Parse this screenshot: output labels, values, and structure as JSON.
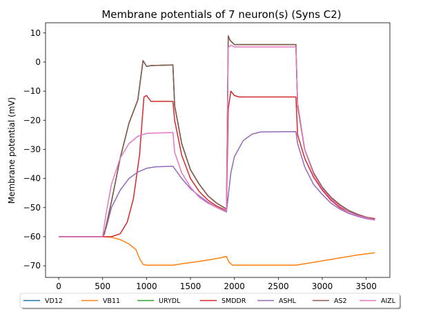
{
  "chart_data": {
    "type": "line",
    "title": "Membrane potentials of 7 neuron(s) (Syns C2)",
    "xlabel": "",
    "ylabel": "Membrane potential (mV)",
    "xlim": [
      -150,
      3770
    ],
    "ylim": [
      -74,
      13.5
    ],
    "xticks": [
      0,
      500,
      1000,
      1500,
      2000,
      2500,
      3000,
      3500
    ],
    "yticks": [
      -70,
      -60,
      -50,
      -40,
      -30,
      -20,
      -10,
      0,
      10
    ],
    "grid": false,
    "legend_position": "bottom-outside",
    "series": [
      {
        "name": "VD12",
        "color": "#1f77b4",
        "points": [
          [
            0,
            -60
          ],
          [
            500,
            -60
          ],
          [
            520,
            -59
          ],
          [
            600,
            -48
          ],
          [
            700,
            -33
          ],
          [
            800,
            -21
          ],
          [
            900,
            -13
          ],
          [
            960,
            0.5
          ],
          [
            1000,
            -1.5
          ],
          [
            1050,
            -1.2
          ],
          [
            1300,
            -1
          ],
          [
            1320,
            -15
          ],
          [
            1400,
            -28
          ],
          [
            1500,
            -37
          ],
          [
            1600,
            -42
          ],
          [
            1700,
            -46
          ],
          [
            1800,
            -48.5
          ],
          [
            1910,
            -50.5
          ],
          [
            1930,
            9
          ],
          [
            1950,
            7.5
          ],
          [
            2000,
            6
          ],
          [
            2700,
            6
          ],
          [
            2720,
            -15
          ],
          [
            2800,
            -30
          ],
          [
            2900,
            -38
          ],
          [
            3000,
            -43
          ],
          [
            3100,
            -46.5
          ],
          [
            3200,
            -49
          ],
          [
            3300,
            -51
          ],
          [
            3400,
            -52.3
          ],
          [
            3500,
            -53.3
          ],
          [
            3600,
            -54
          ]
        ]
      },
      {
        "name": "VB11",
        "color": "#ff7f0e",
        "points": [
          [
            0,
            -60
          ],
          [
            500,
            -60
          ],
          [
            600,
            -60.2
          ],
          [
            700,
            -61
          ],
          [
            800,
            -62.5
          ],
          [
            880,
            -64.5
          ],
          [
            920,
            -67.5
          ],
          [
            960,
            -69.5
          ],
          [
            1000,
            -69.8
          ],
          [
            1300,
            -69.8
          ],
          [
            1400,
            -69.3
          ],
          [
            1600,
            -68.5
          ],
          [
            1800,
            -67.5
          ],
          [
            1910,
            -66.8
          ],
          [
            1940,
            -68.8
          ],
          [
            1980,
            -69.8
          ],
          [
            2700,
            -69.8
          ],
          [
            2800,
            -69.3
          ],
          [
            3000,
            -68.3
          ],
          [
            3200,
            -67.3
          ],
          [
            3400,
            -66.3
          ],
          [
            3600,
            -65.5
          ]
        ]
      },
      {
        "name": "URYDL",
        "color": "#2ca02c",
        "points": [
          [
            0,
            -60
          ],
          [
            500,
            -60
          ],
          [
            520,
            -59
          ],
          [
            600,
            -48
          ],
          [
            700,
            -33
          ],
          [
            800,
            -21
          ],
          [
            900,
            -13
          ],
          [
            960,
            0.5
          ],
          [
            1000,
            -1.5
          ],
          [
            1050,
            -1.2
          ],
          [
            1300,
            -1
          ],
          [
            1320,
            -15
          ],
          [
            1400,
            -28
          ],
          [
            1500,
            -37
          ],
          [
            1600,
            -42
          ],
          [
            1700,
            -46
          ],
          [
            1800,
            -48.5
          ],
          [
            1910,
            -50.5
          ],
          [
            1930,
            9
          ],
          [
            1950,
            7.5
          ],
          [
            2000,
            6
          ],
          [
            2700,
            6
          ],
          [
            2720,
            -15
          ],
          [
            2800,
            -30
          ],
          [
            2900,
            -38
          ],
          [
            3000,
            -43
          ],
          [
            3100,
            -46.5
          ],
          [
            3200,
            -49
          ],
          [
            3300,
            -51
          ],
          [
            3400,
            -52.3
          ],
          [
            3500,
            -53.3
          ],
          [
            3600,
            -54
          ]
        ]
      },
      {
        "name": "SMDDR",
        "color": "#d62728",
        "points": [
          [
            0,
            -60
          ],
          [
            600,
            -60
          ],
          [
            700,
            -59
          ],
          [
            780,
            -55
          ],
          [
            850,
            -47
          ],
          [
            920,
            -32
          ],
          [
            970,
            -12
          ],
          [
            1000,
            -11.5
          ],
          [
            1050,
            -13.5
          ],
          [
            1300,
            -13.5
          ],
          [
            1320,
            -20
          ],
          [
            1400,
            -32
          ],
          [
            1500,
            -40
          ],
          [
            1600,
            -44.5
          ],
          [
            1700,
            -47.5
          ],
          [
            1800,
            -49.5
          ],
          [
            1910,
            -51
          ],
          [
            1930,
            -16
          ],
          [
            1960,
            -10
          ],
          [
            2000,
            -11.5
          ],
          [
            2050,
            -12
          ],
          [
            2700,
            -12
          ],
          [
            2720,
            -25
          ],
          [
            2800,
            -33
          ],
          [
            2900,
            -39.5
          ],
          [
            3000,
            -44
          ],
          [
            3100,
            -47.5
          ],
          [
            3200,
            -50
          ],
          [
            3300,
            -51.5
          ],
          [
            3400,
            -52.5
          ],
          [
            3500,
            -53.3
          ],
          [
            3600,
            -53.8
          ]
        ]
      },
      {
        "name": "ASHL",
        "color": "#9467bd",
        "points": [
          [
            0,
            -60
          ],
          [
            500,
            -60
          ],
          [
            540,
            -57
          ],
          [
            600,
            -50
          ],
          [
            700,
            -44
          ],
          [
            800,
            -40
          ],
          [
            900,
            -37.8
          ],
          [
            1000,
            -36.5
          ],
          [
            1100,
            -36
          ],
          [
            1300,
            -35.8
          ],
          [
            1400,
            -40
          ],
          [
            1500,
            -43.5
          ],
          [
            1600,
            -46
          ],
          [
            1700,
            -48.2
          ],
          [
            1800,
            -50
          ],
          [
            1910,
            -51.5
          ],
          [
            1930,
            -46
          ],
          [
            1960,
            -38
          ],
          [
            2000,
            -32.5
          ],
          [
            2100,
            -27
          ],
          [
            2200,
            -24.8
          ],
          [
            2300,
            -24
          ],
          [
            2700,
            -23.9
          ],
          [
            2720,
            -28
          ],
          [
            2800,
            -36
          ],
          [
            2900,
            -42
          ],
          [
            3000,
            -45.5
          ],
          [
            3100,
            -48.5
          ],
          [
            3200,
            -50.5
          ],
          [
            3300,
            -52
          ],
          [
            3400,
            -53
          ],
          [
            3500,
            -53.8
          ],
          [
            3600,
            -54.3
          ]
        ]
      },
      {
        "name": "AS2",
        "color": "#8c564b",
        "points": [
          [
            0,
            -60
          ],
          [
            500,
            -60
          ],
          [
            520,
            -59
          ],
          [
            600,
            -48
          ],
          [
            700,
            -33
          ],
          [
            800,
            -21
          ],
          [
            900,
            -13
          ],
          [
            960,
            0.5
          ],
          [
            1000,
            -1.5
          ],
          [
            1050,
            -1.2
          ],
          [
            1300,
            -1
          ],
          [
            1320,
            -15
          ],
          [
            1400,
            -28
          ],
          [
            1500,
            -37
          ],
          [
            1600,
            -42
          ],
          [
            1700,
            -46
          ],
          [
            1800,
            -48.5
          ],
          [
            1910,
            -50.5
          ],
          [
            1930,
            9
          ],
          [
            1950,
            7.5
          ],
          [
            2000,
            6
          ],
          [
            2700,
            6
          ],
          [
            2720,
            -15
          ],
          [
            2800,
            -30
          ],
          [
            2900,
            -38
          ],
          [
            3000,
            -43
          ],
          [
            3100,
            -46.5
          ],
          [
            3200,
            -49
          ],
          [
            3300,
            -51
          ],
          [
            3400,
            -52.3
          ],
          [
            3500,
            -53.3
          ],
          [
            3600,
            -54
          ]
        ]
      },
      {
        "name": "AIZL",
        "color": "#e377c2",
        "points": [
          [
            0,
            -60
          ],
          [
            500,
            -60
          ],
          [
            540,
            -52
          ],
          [
            600,
            -42
          ],
          [
            700,
            -33
          ],
          [
            800,
            -28
          ],
          [
            900,
            -25.5
          ],
          [
            1000,
            -24.5
          ],
          [
            1300,
            -24.2
          ],
          [
            1320,
            -31
          ],
          [
            1400,
            -38
          ],
          [
            1500,
            -43
          ],
          [
            1600,
            -46.5
          ],
          [
            1700,
            -48.5
          ],
          [
            1800,
            -50
          ],
          [
            1910,
            -51.2
          ],
          [
            1930,
            5
          ],
          [
            1960,
            5.8
          ],
          [
            2000,
            5.2
          ],
          [
            2700,
            5.2
          ],
          [
            2720,
            -14
          ],
          [
            2800,
            -30
          ],
          [
            2900,
            -38.5
          ],
          [
            3000,
            -43.5
          ],
          [
            3100,
            -47
          ],
          [
            3200,
            -49.5
          ],
          [
            3300,
            -51.5
          ],
          [
            3400,
            -52.7
          ],
          [
            3500,
            -53.5
          ],
          [
            3600,
            -54.2
          ]
        ]
      }
    ]
  }
}
